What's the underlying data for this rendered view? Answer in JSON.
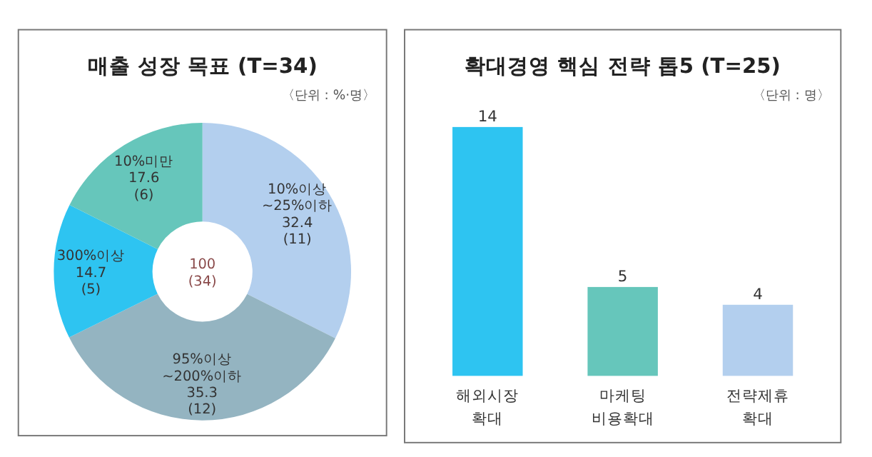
{
  "chart_data": [
    {
      "type": "donut",
      "title": "매출 성장 목표 (T=34)",
      "subtitle": "〈단위 : %·명〉",
      "categories": [
        "10%이상 ~25%이하",
        "95%이상 ~200%이하",
        "300%이상",
        "10%미만"
      ],
      "values": [
        32.4,
        35.3,
        14.7,
        17.6
      ],
      "value_labels": [
        "32.4 (11)",
        "35.3 (12)",
        "14.7 (5)",
        "17.6 (6)"
      ],
      "colors": [
        "#b3cfee",
        "#94b4c1",
        "#2ec4f1",
        "#66c6bb"
      ],
      "annotations": [
        "100 (34)"
      ]
    },
    {
      "type": "bar",
      "title": "확대경영 핵심 전략 톱5 (T=25)",
      "subtitle": "〈단위 : 명〉",
      "categories": [
        "해외시장 확대",
        "마케팅 비용확대",
        "전략제휴 확대"
      ],
      "values": [
        14,
        5,
        4
      ],
      "colors": [
        "#2ec4f1",
        "#66c6bb",
        "#b3cfee"
      ],
      "data_labels": true
    }
  ]
}
